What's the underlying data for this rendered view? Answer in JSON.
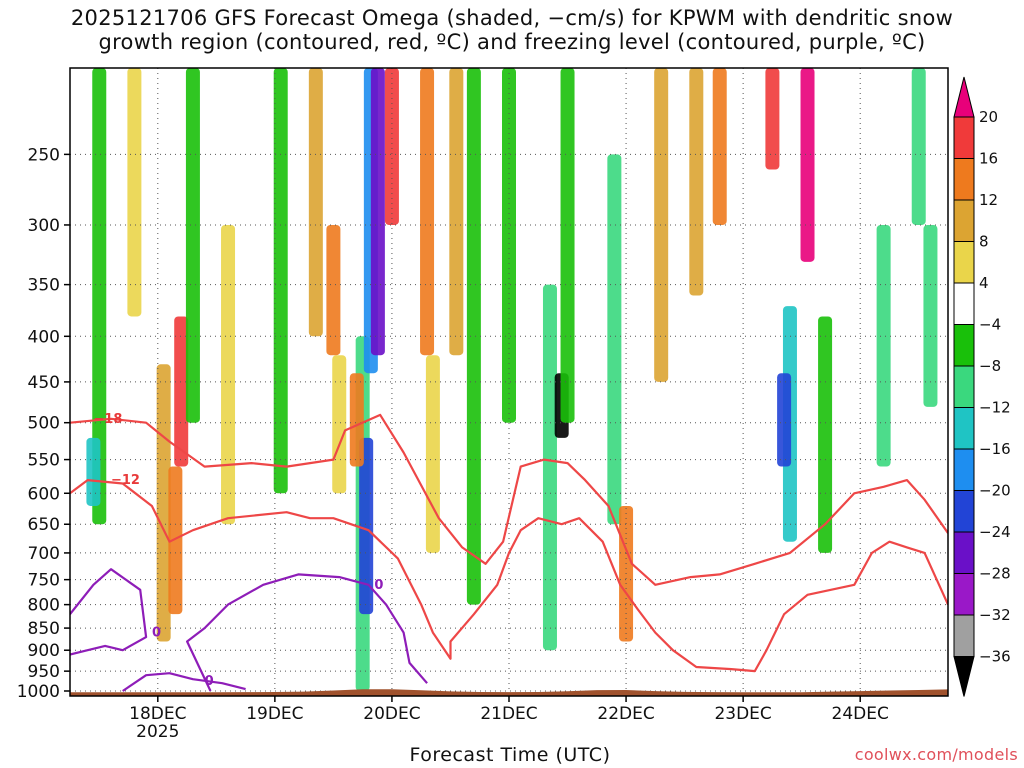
{
  "title_line1": "2025121706 GFS Forecast Omega (shaded, −cm/s) for KPWM with dendritic snow",
  "title_line2": "growth region (contoured, red, ºC) and freezing level (contoured, purple, ºC)",
  "credit": "coolwx.com/models",
  "chart_data": {
    "type": "heatmap",
    "title": "2025121706 GFS Forecast Omega (shaded, −cm/s) for KPWM",
    "xlabel": "Forecast Time (UTC)",
    "ylabel": "",
    "x_ticks": [
      "18DEC",
      "19DEC",
      "20DEC",
      "21DEC",
      "22DEC",
      "23DEC",
      "24DEC"
    ],
    "x_year_label": "2025",
    "x_range_days": [
      17.25,
      24.75
    ],
    "y_ticks": [
      250,
      300,
      350,
      400,
      450,
      500,
      550,
      600,
      650,
      700,
      750,
      800,
      850,
      900,
      950,
      1000
    ],
    "y_range_hpa": [
      200,
      1013
    ],
    "colorbar": {
      "label_units": "-cm/s",
      "tick_labels": [
        "20",
        "16",
        "12",
        "8",
        "4",
        "−4",
        "−8",
        "−12",
        "−16",
        "−20",
        "−24",
        "−28",
        "−32",
        "−36"
      ],
      "colors": [
        "#e8007a",
        "#f03a3a",
        "#ee7a1e",
        "#dca432",
        "#ead54a",
        "#ffffff",
        "#19c00a",
        "#3ad87e",
        "#1fc4c4",
        "#1e8ef0",
        "#2244d6",
        "#6a10c8",
        "#9a18c8",
        "#a0a0a0",
        "#000000"
      ]
    },
    "omega_cells": [
      {
        "d": 17.5,
        "p0": 200,
        "p1": 650,
        "v": -6
      },
      {
        "d": 17.45,
        "p0": 520,
        "p1": 620,
        "v": -14
      },
      {
        "d": 17.8,
        "p0": 200,
        "p1": 380,
        "v": 6
      },
      {
        "d": 18.05,
        "p0": 430,
        "p1": 880,
        "v": 10
      },
      {
        "d": 18.2,
        "p0": 380,
        "p1": 560,
        "v": 18
      },
      {
        "d": 18.15,
        "p0": 560,
        "p1": 820,
        "v": 13
      },
      {
        "d": 18.3,
        "p0": 200,
        "p1": 500,
        "v": -7
      },
      {
        "d": 18.6,
        "p0": 300,
        "p1": 650,
        "v": 5
      },
      {
        "d": 19.05,
        "p0": 200,
        "p1": 600,
        "v": -6
      },
      {
        "d": 19.35,
        "p0": 200,
        "p1": 400,
        "v": 8
      },
      {
        "d": 19.5,
        "p0": 300,
        "p1": 420,
        "v": 15
      },
      {
        "d": 19.55,
        "p0": 420,
        "p1": 600,
        "v": 6
      },
      {
        "d": 19.75,
        "p0": 400,
        "p1": 1000,
        "v": -10
      },
      {
        "d": 19.82,
        "p0": 200,
        "p1": 440,
        "v": -17
      },
      {
        "d": 19.88,
        "p0": 200,
        "p1": 420,
        "v": -25
      },
      {
        "d": 19.78,
        "p0": 520,
        "p1": 820,
        "v": -23
      },
      {
        "d": 19.7,
        "p0": 440,
        "p1": 560,
        "v": 14
      },
      {
        "d": 20.0,
        "p0": 200,
        "p1": 300,
        "v": 18
      },
      {
        "d": 20.3,
        "p0": 200,
        "p1": 420,
        "v": 14
      },
      {
        "d": 20.35,
        "p0": 420,
        "p1": 700,
        "v": 5
      },
      {
        "d": 20.55,
        "p0": 200,
        "p1": 420,
        "v": 10
      },
      {
        "d": 20.7,
        "p0": 200,
        "p1": 800,
        "v": -6
      },
      {
        "d": 21.0,
        "p0": 200,
        "p1": 500,
        "v": -8
      },
      {
        "d": 21.35,
        "p0": 350,
        "p1": 900,
        "v": -12
      },
      {
        "d": 21.45,
        "p0": 440,
        "p1": 520,
        "v": -38
      },
      {
        "d": 21.5,
        "p0": 200,
        "p1": 500,
        "v": -6
      },
      {
        "d": 21.9,
        "p0": 250,
        "p1": 650,
        "v": -9
      },
      {
        "d": 22.0,
        "p0": 620,
        "p1": 880,
        "v": 12
      },
      {
        "d": 22.3,
        "p0": 200,
        "p1": 450,
        "v": 8
      },
      {
        "d": 22.6,
        "p0": 200,
        "p1": 360,
        "v": 10
      },
      {
        "d": 22.8,
        "p0": 200,
        "p1": 300,
        "v": 12
      },
      {
        "d": 23.25,
        "p0": 200,
        "p1": 260,
        "v": 16
      },
      {
        "d": 23.55,
        "p0": 200,
        "p1": 330,
        "v": 21
      },
      {
        "d": 23.4,
        "p0": 370,
        "p1": 680,
        "v": -16
      },
      {
        "d": 23.35,
        "p0": 440,
        "p1": 560,
        "v": -21
      },
      {
        "d": 23.7,
        "p0": 380,
        "p1": 700,
        "v": -8
      },
      {
        "d": 24.2,
        "p0": 300,
        "p1": 560,
        "v": -12
      },
      {
        "d": 24.5,
        "p0": 200,
        "p1": 300,
        "v": -9
      },
      {
        "d": 24.6,
        "p0": 300,
        "p1": 480,
        "v": -12
      }
    ],
    "dgz_contours": [
      {
        "label": "−18",
        "label_at": [
          17.45,
          495
        ],
        "points": [
          [
            17.25,
            500
          ],
          [
            17.6,
            495
          ],
          [
            17.9,
            500
          ],
          [
            18.1,
            525
          ],
          [
            18.4,
            560
          ],
          [
            18.8,
            555
          ],
          [
            19.1,
            560
          ],
          [
            19.5,
            550
          ],
          [
            19.6,
            510
          ],
          [
            19.9,
            490
          ],
          [
            20.1,
            540
          ],
          [
            20.4,
            640
          ],
          [
            20.6,
            690
          ],
          [
            20.8,
            720
          ],
          [
            20.95,
            680
          ],
          [
            21.1,
            560
          ],
          [
            21.3,
            550
          ],
          [
            21.5,
            555
          ],
          [
            21.65,
            580
          ],
          [
            21.85,
            620
          ],
          [
            22.05,
            720
          ],
          [
            22.25,
            760
          ],
          [
            22.55,
            745
          ],
          [
            22.8,
            740
          ],
          [
            23.1,
            720
          ],
          [
            23.4,
            700
          ],
          [
            23.7,
            650
          ],
          [
            23.95,
            600
          ],
          [
            24.2,
            590
          ],
          [
            24.4,
            580
          ],
          [
            24.55,
            610
          ],
          [
            24.75,
            665
          ]
        ]
      },
      {
        "label": "−12",
        "label_at": [
          17.6,
          580
        ],
        "points": [
          [
            17.25,
            600
          ],
          [
            17.4,
            580
          ],
          [
            17.7,
            585
          ],
          [
            17.95,
            620
          ],
          [
            18.1,
            680
          ],
          [
            18.3,
            660
          ],
          [
            18.6,
            640
          ],
          [
            19.1,
            630
          ],
          [
            19.3,
            640
          ],
          [
            19.5,
            640
          ],
          [
            19.8,
            660
          ],
          [
            20.05,
            710
          ],
          [
            20.25,
            800
          ],
          [
            20.35,
            860
          ],
          [
            20.5,
            920
          ],
          [
            20.5,
            880
          ],
          [
            20.7,
            820
          ],
          [
            20.9,
            760
          ],
          [
            21.0,
            700
          ],
          [
            21.1,
            660
          ],
          [
            21.25,
            640
          ],
          [
            21.45,
            650
          ],
          [
            21.6,
            640
          ],
          [
            21.8,
            680
          ],
          [
            21.95,
            760
          ],
          [
            22.1,
            810
          ],
          [
            22.25,
            860
          ],
          [
            22.4,
            900
          ],
          [
            22.6,
            940
          ],
          [
            22.9,
            945
          ],
          [
            23.1,
            950
          ],
          [
            23.2,
            900
          ],
          [
            23.35,
            820
          ],
          [
            23.55,
            780
          ],
          [
            23.75,
            770
          ],
          [
            23.95,
            760
          ],
          [
            24.1,
            700
          ],
          [
            24.25,
            680
          ],
          [
            24.4,
            690
          ],
          [
            24.55,
            700
          ],
          [
            24.75,
            800
          ]
        ]
      }
    ],
    "freezing_contours": [
      {
        "label": "0",
        "label_at": [
          17.95,
          860
        ],
        "points": [
          [
            17.25,
            820
          ],
          [
            17.45,
            760
          ],
          [
            17.6,
            730
          ],
          [
            17.85,
            770
          ],
          [
            17.9,
            870
          ],
          [
            17.7,
            900
          ],
          [
            17.55,
            890
          ],
          [
            17.4,
            900
          ],
          [
            17.25,
            910
          ]
        ]
      },
      {
        "label": "0",
        "label_at": [
          19.85,
          760
        ],
        "points": [
          [
            18.45,
            1000
          ],
          [
            18.25,
            880
          ],
          [
            18.4,
            850
          ],
          [
            18.6,
            800
          ],
          [
            18.9,
            760
          ],
          [
            19.2,
            740
          ],
          [
            19.55,
            745
          ],
          [
            19.8,
            760
          ],
          [
            19.95,
            800
          ],
          [
            20.1,
            860
          ],
          [
            20.15,
            930
          ],
          [
            20.3,
            980
          ]
        ]
      },
      {
        "label": "0",
        "label_at": [
          18.4,
          975
        ],
        "points": [
          [
            17.7,
            1000
          ],
          [
            17.9,
            960
          ],
          [
            18.1,
            955
          ],
          [
            18.3,
            970
          ],
          [
            18.55,
            980
          ],
          [
            18.75,
            995
          ]
        ]
      }
    ]
  }
}
